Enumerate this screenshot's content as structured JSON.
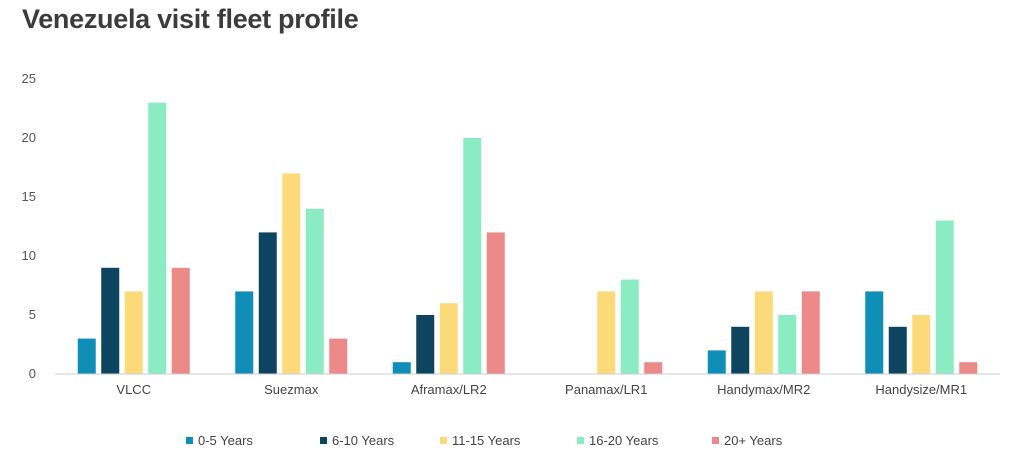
{
  "chart_data": {
    "type": "bar",
    "title": "Venezuela visit fleet profile",
    "xlabel": "",
    "ylabel": "",
    "ylim": [
      0,
      25
    ],
    "yticks": [
      0,
      5,
      10,
      15,
      20,
      25
    ],
    "grid": false,
    "legend_position": "bottom",
    "categories": [
      "VLCC",
      "Suezmax",
      "Aframax/LR2",
      "Panamax/LR1",
      "Handymax/MR2",
      "Handysize/MR1"
    ],
    "series": [
      {
        "name": "0-5 Years",
        "color": "#0f8fb8",
        "values": [
          3,
          7,
          1,
          0,
          2,
          7
        ]
      },
      {
        "name": "6-10 Years",
        "color": "#0d4460",
        "values": [
          9,
          12,
          5,
          0,
          4,
          4
        ]
      },
      {
        "name": "11-15 Years",
        "color": "#fcd979",
        "values": [
          7,
          17,
          6,
          7,
          7,
          5
        ]
      },
      {
        "name": "16-20 Years",
        "color": "#8becc4",
        "values": [
          23,
          14,
          20,
          8,
          5,
          13
        ]
      },
      {
        "name": "20+ Years",
        "color": "#ec8989",
        "values": [
          9,
          3,
          12,
          1,
          7,
          1
        ]
      }
    ]
  }
}
